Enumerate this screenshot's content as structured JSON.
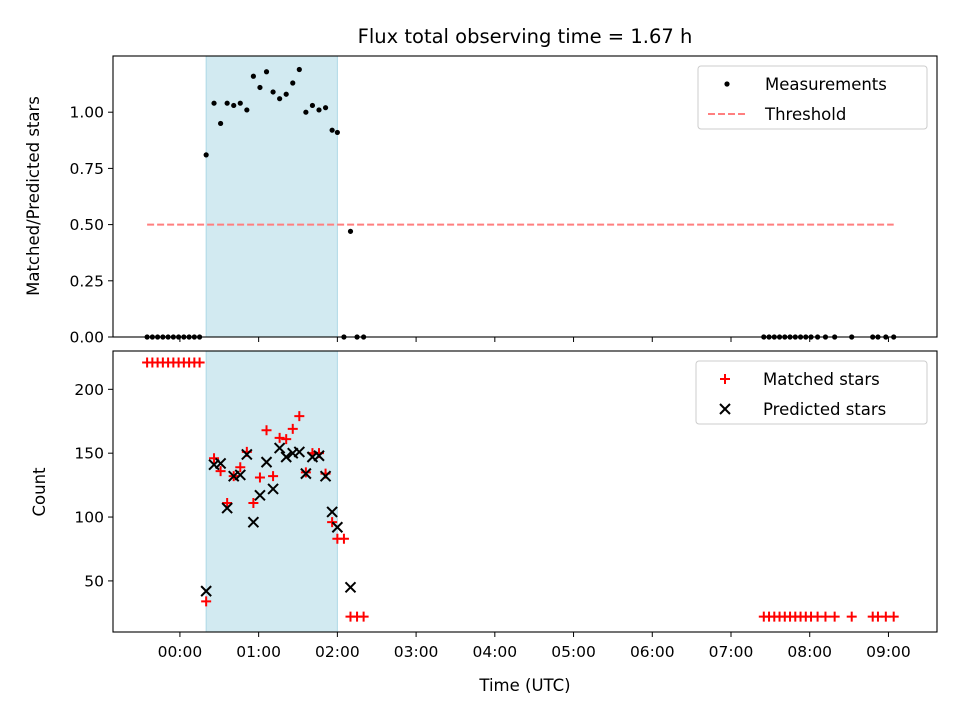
{
  "chart_data": [
    {
      "type": "scatter",
      "title": "Flux total observing time = 1.67 h",
      "ylabel": "Matched/Predicted stars",
      "xlabel": "",
      "xlim": [
        "-00:51",
        "09:37"
      ],
      "ylim": [
        0,
        1.25
      ],
      "yticks": [
        0.0,
        0.25,
        0.5,
        0.75,
        1.0
      ],
      "ytick_labels": [
        "0.00",
        "0.25",
        "0.50",
        "0.75",
        "1.00"
      ],
      "x_units": "time of day (UTC), HH:MM; negative = minutes before 00:00",
      "shaded_interval": [
        "00:20",
        "02:00"
      ],
      "legend": {
        "placement": "top-right",
        "entries": [
          "Measurements",
          "Threshold"
        ]
      },
      "series": [
        {
          "name": "Measurements",
          "marker": "dot",
          "color": "#000000",
          "points": [
            [
              "-00:25",
              0
            ],
            [
              "-00:21",
              0
            ],
            [
              "-00:17",
              0
            ],
            [
              "-00:13",
              0
            ],
            [
              "-00:09",
              0
            ],
            [
              "-00:05",
              0
            ],
            [
              "-00:01",
              0
            ],
            [
              "00:03",
              0
            ],
            [
              "00:07",
              0
            ],
            [
              "00:11",
              0
            ],
            [
              "00:15",
              0
            ],
            [
              "00:20",
              0.81
            ],
            [
              "00:26",
              1.04
            ],
            [
              "00:31",
              0.95
            ],
            [
              "00:36",
              1.04
            ],
            [
              "00:41",
              1.03
            ],
            [
              "00:46",
              1.04
            ],
            [
              "00:51",
              1.01
            ],
            [
              "00:56",
              1.16
            ],
            [
              "01:01",
              1.11
            ],
            [
              "01:06",
              1.18
            ],
            [
              "01:11",
              1.09
            ],
            [
              "01:16",
              1.06
            ],
            [
              "01:21",
              1.08
            ],
            [
              "01:26",
              1.13
            ],
            [
              "01:31",
              1.19
            ],
            [
              "01:36",
              1.0
            ],
            [
              "01:41",
              1.03
            ],
            [
              "01:46",
              1.01
            ],
            [
              "01:51",
              1.02
            ],
            [
              "01:56",
              0.92
            ],
            [
              "02:00",
              0.91
            ],
            [
              "02:05",
              0
            ],
            [
              "02:10",
              0.47
            ],
            [
              "02:15",
              0
            ],
            [
              "02:20",
              0
            ],
            [
              "07:25",
              0
            ],
            [
              "07:29",
              0
            ],
            [
              "07:33",
              0
            ],
            [
              "07:37",
              0
            ],
            [
              "07:41",
              0
            ],
            [
              "07:45",
              0
            ],
            [
              "07:49",
              0
            ],
            [
              "07:53",
              0
            ],
            [
              "07:57",
              0
            ],
            [
              "08:01",
              0
            ],
            [
              "08:06",
              0
            ],
            [
              "08:12",
              0
            ],
            [
              "08:19",
              0
            ],
            [
              "08:32",
              0
            ],
            [
              "08:48",
              0
            ],
            [
              "08:52",
              0
            ],
            [
              "08:58",
              0
            ],
            [
              "09:04",
              0
            ]
          ]
        },
        {
          "name": "Threshold",
          "type": "line",
          "style": "dashed",
          "color": "#ff7f7f",
          "points": [
            [
              "-00:25",
              0.5
            ],
            [
              "09:04",
              0.5
            ]
          ]
        }
      ]
    },
    {
      "type": "scatter",
      "title": "",
      "ylabel": "Count",
      "xlabel": "Time (UTC)",
      "xlim": [
        "-00:51",
        "09:37"
      ],
      "ylim": [
        10,
        230
      ],
      "yticks": [
        50,
        100,
        150,
        200
      ],
      "ytick_labels": [
        "50",
        "100",
        "150",
        "200"
      ],
      "xticks": [
        "00:00",
        "01:00",
        "02:00",
        "03:00",
        "04:00",
        "05:00",
        "06:00",
        "07:00",
        "08:00",
        "09:00"
      ],
      "xtick_labels": [
        "00:00",
        "01:00",
        "02:00",
        "03:00",
        "04:00",
        "05:00",
        "06:00",
        "07:00",
        "08:00",
        "09:00"
      ],
      "x_units": "time of day (UTC), HH:MM; negative = minutes before 00:00",
      "shaded_interval": [
        "00:20",
        "02:00"
      ],
      "legend": {
        "placement": "top-right",
        "entries": [
          "Matched stars",
          "Predicted stars"
        ]
      },
      "series": [
        {
          "name": "Matched stars",
          "marker": "plus",
          "color": "#ff0000",
          "points": [
            [
              "-00:25",
              221
            ],
            [
              "-00:21",
              221
            ],
            [
              "-00:17",
              221
            ],
            [
              "-00:13",
              221
            ],
            [
              "-00:09",
              221
            ],
            [
              "-00:05",
              221
            ],
            [
              "-00:01",
              221
            ],
            [
              "00:03",
              221
            ],
            [
              "00:07",
              221
            ],
            [
              "00:11",
              221
            ],
            [
              "00:15",
              221
            ],
            [
              "00:20",
              34
            ],
            [
              "00:26",
              146
            ],
            [
              "00:31",
              136
            ],
            [
              "00:36",
              111
            ],
            [
              "00:41",
              132
            ],
            [
              "00:46",
              139
            ],
            [
              "00:51",
              151
            ],
            [
              "00:56",
              111
            ],
            [
              "01:01",
              131
            ],
            [
              "01:06",
              168
            ],
            [
              "01:11",
              132
            ],
            [
              "01:16",
              162
            ],
            [
              "01:21",
              161
            ],
            [
              "01:26",
              169
            ],
            [
              "01:31",
              179
            ],
            [
              "01:36",
              135
            ],
            [
              "01:41",
              150
            ],
            [
              "01:46",
              150
            ],
            [
              "01:51",
              134
            ],
            [
              "01:56",
              96
            ],
            [
              "02:00",
              83
            ],
            [
              "02:05",
              83
            ],
            [
              "02:10",
              22
            ],
            [
              "02:15",
              22
            ],
            [
              "02:20",
              22
            ],
            [
              "07:25",
              22
            ],
            [
              "07:29",
              22
            ],
            [
              "07:33",
              22
            ],
            [
              "07:37",
              22
            ],
            [
              "07:41",
              22
            ],
            [
              "07:45",
              22
            ],
            [
              "07:49",
              22
            ],
            [
              "07:53",
              22
            ],
            [
              "07:57",
              22
            ],
            [
              "08:01",
              22
            ],
            [
              "08:06",
              22
            ],
            [
              "08:12",
              22
            ],
            [
              "08:19",
              22
            ],
            [
              "08:32",
              22
            ],
            [
              "08:48",
              22
            ],
            [
              "08:52",
              22
            ],
            [
              "08:58",
              22
            ],
            [
              "09:04",
              22
            ]
          ]
        },
        {
          "name": "Predicted stars",
          "marker": "x",
          "color": "#000000",
          "points": [
            [
              "00:20",
              42
            ],
            [
              "00:26",
              141
            ],
            [
              "00:31",
              142
            ],
            [
              "00:36",
              107
            ],
            [
              "00:41",
              132
            ],
            [
              "00:46",
              133
            ],
            [
              "00:51",
              149
            ],
            [
              "00:56",
              96
            ],
            [
              "01:01",
              117
            ],
            [
              "01:06",
              143
            ],
            [
              "01:11",
              122
            ],
            [
              "01:16",
              154
            ],
            [
              "01:21",
              147
            ],
            [
              "01:26",
              150
            ],
            [
              "01:31",
              151
            ],
            [
              "01:36",
              134
            ],
            [
              "01:41",
              147
            ],
            [
              "01:46",
              148
            ],
            [
              "01:51",
              132
            ],
            [
              "01:56",
              104
            ],
            [
              "02:00",
              92
            ],
            [
              "02:10",
              45
            ]
          ]
        }
      ]
    }
  ],
  "colors": {
    "shade": "#add8e6",
    "matched": "#ff0000",
    "predicted": "#000000",
    "measurement": "#000000",
    "threshold": "#ff7f7f"
  }
}
